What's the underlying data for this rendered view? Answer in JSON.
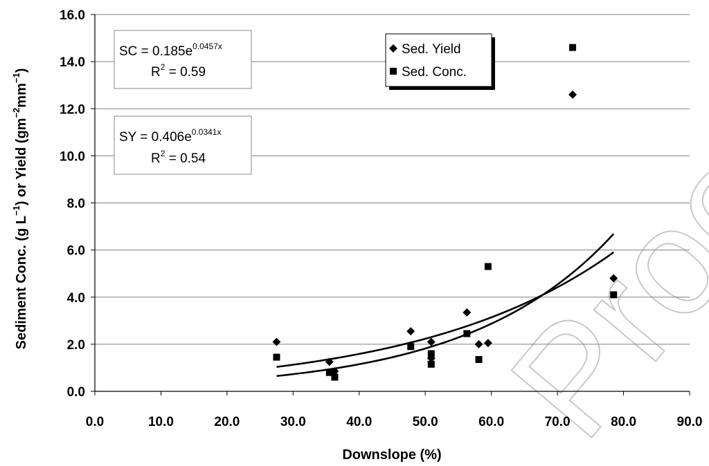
{
  "chart_data": {
    "type": "scatter",
    "xlabel": "Downslope (%)",
    "ylabel": "Sediment Conc. (g L",
    "ylabel_sup1": "−1",
    "ylabel_mid": ") or Yield (gm",
    "ylabel_sup2": "−2",
    "ylabel_mid2": "mm",
    "ylabel_sup3": "−1",
    "ylabel_end": ")",
    "xlim": [
      0,
      90
    ],
    "ylim": [
      0,
      16
    ],
    "x_ticks": [
      "0.0",
      "10.0",
      "20.0",
      "30.0",
      "40.0",
      "50.0",
      "60.0",
      "70.0",
      "80.0",
      "90.0"
    ],
    "y_ticks": [
      "0.0",
      "2.0",
      "4.0",
      "6.0",
      "8.0",
      "10.0",
      "12.0",
      "14.0",
      "16.0"
    ],
    "grid": "horizontal",
    "legend_position": "top-center",
    "series": [
      {
        "name": "Sed. Yield",
        "marker": "diamond",
        "points": [
          [
            27.5,
            2.1
          ],
          [
            35.5,
            1.25
          ],
          [
            36.3,
            0.85
          ],
          [
            47.8,
            2.55
          ],
          [
            50.9,
            2.1
          ],
          [
            50.9,
            1.4
          ],
          [
            56.3,
            3.35
          ],
          [
            58.1,
            2.0
          ],
          [
            59.5,
            2.05
          ],
          [
            72.3,
            12.6
          ],
          [
            78.5,
            4.8
          ]
        ]
      },
      {
        "name": "Sed. Conc.",
        "marker": "square",
        "points": [
          [
            27.5,
            1.45
          ],
          [
            35.5,
            0.8
          ],
          [
            36.3,
            0.6
          ],
          [
            47.8,
            1.9
          ],
          [
            50.9,
            1.6
          ],
          [
            50.9,
            1.15
          ],
          [
            56.3,
            2.45
          ],
          [
            58.1,
            1.35
          ],
          [
            59.5,
            5.3
          ],
          [
            72.3,
            14.6
          ],
          [
            78.5,
            4.1
          ]
        ]
      }
    ],
    "trendlines": [
      {
        "label": "SC",
        "a": 0.185,
        "b": 0.0457,
        "x_range": [
          27.5,
          78.5
        ]
      },
      {
        "label": "SY",
        "a": 0.406,
        "b": 0.0341,
        "x_range": [
          27.5,
          78.5
        ]
      }
    ],
    "equations": [
      {
        "prefix": "SC = 0.185e",
        "exponent": "0.0457x",
        "r2_label": "R",
        "r2_sup": "2",
        "r2_value": " = 0.59"
      },
      {
        "prefix": "SY = 0.406e",
        "exponent": "0.0341x",
        "r2_label": "R",
        "r2_sup": "2",
        "r2_value": " = 0.54"
      }
    ],
    "watermark": "Proof"
  }
}
